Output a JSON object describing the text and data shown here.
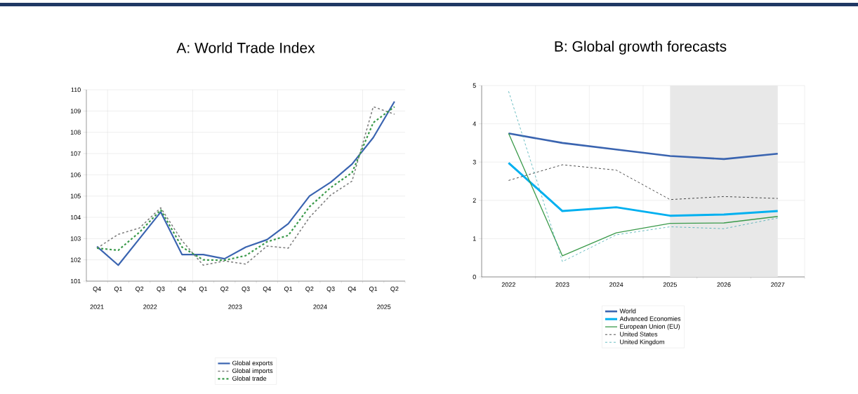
{
  "chart_data": [
    {
      "type": "line",
      "title": "A: World Trade Index",
      "categories": [
        "Q4",
        "Q1",
        "Q2",
        "Q3",
        "Q4",
        "Q1",
        "Q2",
        "Q3",
        "Q4",
        "Q1",
        "Q2",
        "Q3",
        "Q4",
        "Q1",
        "Q2"
      ],
      "ylim": [
        101,
        110
      ],
      "yticks": [
        101,
        102,
        103,
        104,
        105,
        106,
        107,
        108,
        109,
        110
      ],
      "grid": true,
      "legend": "bottom",
      "annotations": [
        "2021",
        "2022",
        "2023",
        "2024",
        "2025"
      ],
      "series": [
        {
          "name": "Global exports",
          "color": "#3a64b0",
          "line_style": "solid",
          "values": [
            102.63,
            101.75,
            103.0,
            104.25,
            102.25,
            102.25,
            102.05,
            102.6,
            102.95,
            103.7,
            105.0,
            105.65,
            106.5,
            107.75,
            109.45
          ]
        },
        {
          "name": "Global imports",
          "color": "#808080",
          "line_style": "dashed",
          "values": [
            102.55,
            103.2,
            103.5,
            104.45,
            102.9,
            101.75,
            101.95,
            101.8,
            102.65,
            102.55,
            104.0,
            105.05,
            105.7,
            109.2,
            108.85
          ]
        },
        {
          "name": "Global trade",
          "color": "#3a9a4a",
          "line_style": "dashed",
          "values": [
            102.55,
            102.45,
            103.3,
            104.35,
            102.6,
            102.0,
            101.98,
            102.2,
            102.85,
            103.15,
            104.5,
            105.4,
            106.1,
            108.45,
            109.2
          ]
        }
      ]
    },
    {
      "type": "line",
      "title": "B: Global growth forecasts",
      "x": [
        2022,
        2023,
        2024,
        2025,
        2026,
        2027
      ],
      "xlim": [
        2021.5,
        2027.5
      ],
      "xticks": [
        2022,
        2023,
        2024,
        2025,
        2026,
        2027
      ],
      "ylim": [
        0,
        5
      ],
      "yticks": [
        0,
        1,
        2,
        3,
        4,
        5
      ],
      "grid": true,
      "legend": "bottom",
      "bands": [
        {
          "axis": "x",
          "from": 2025,
          "to": 2027,
          "color": "#e8e8e8"
        }
      ],
      "series": [
        {
          "name": "World",
          "color": "#3a64b0",
          "line_style": "solid",
          "values": [
            3.75,
            3.5,
            3.33,
            3.16,
            3.08,
            3.22
          ]
        },
        {
          "name": "Advanced Economies",
          "color": "#00b0f0",
          "line_style": "solid",
          "values": [
            2.98,
            1.72,
            1.82,
            1.6,
            1.63,
            1.72
          ]
        },
        {
          "name": "European Union (EU)",
          "color": "#3a9a4a",
          "line_style": "solid",
          "values": [
            3.75,
            0.55,
            1.15,
            1.4,
            1.41,
            1.58
          ]
        },
        {
          "name": "United States",
          "color": "#000000",
          "line_style": "dashed",
          "values": [
            2.52,
            2.93,
            2.79,
            2.02,
            2.1,
            2.05
          ]
        },
        {
          "name": "United Kingdom",
          "color": "#2aa0a8",
          "line_style": "dashed",
          "values": [
            4.85,
            0.4,
            1.1,
            1.31,
            1.26,
            1.54
          ]
        }
      ]
    }
  ]
}
